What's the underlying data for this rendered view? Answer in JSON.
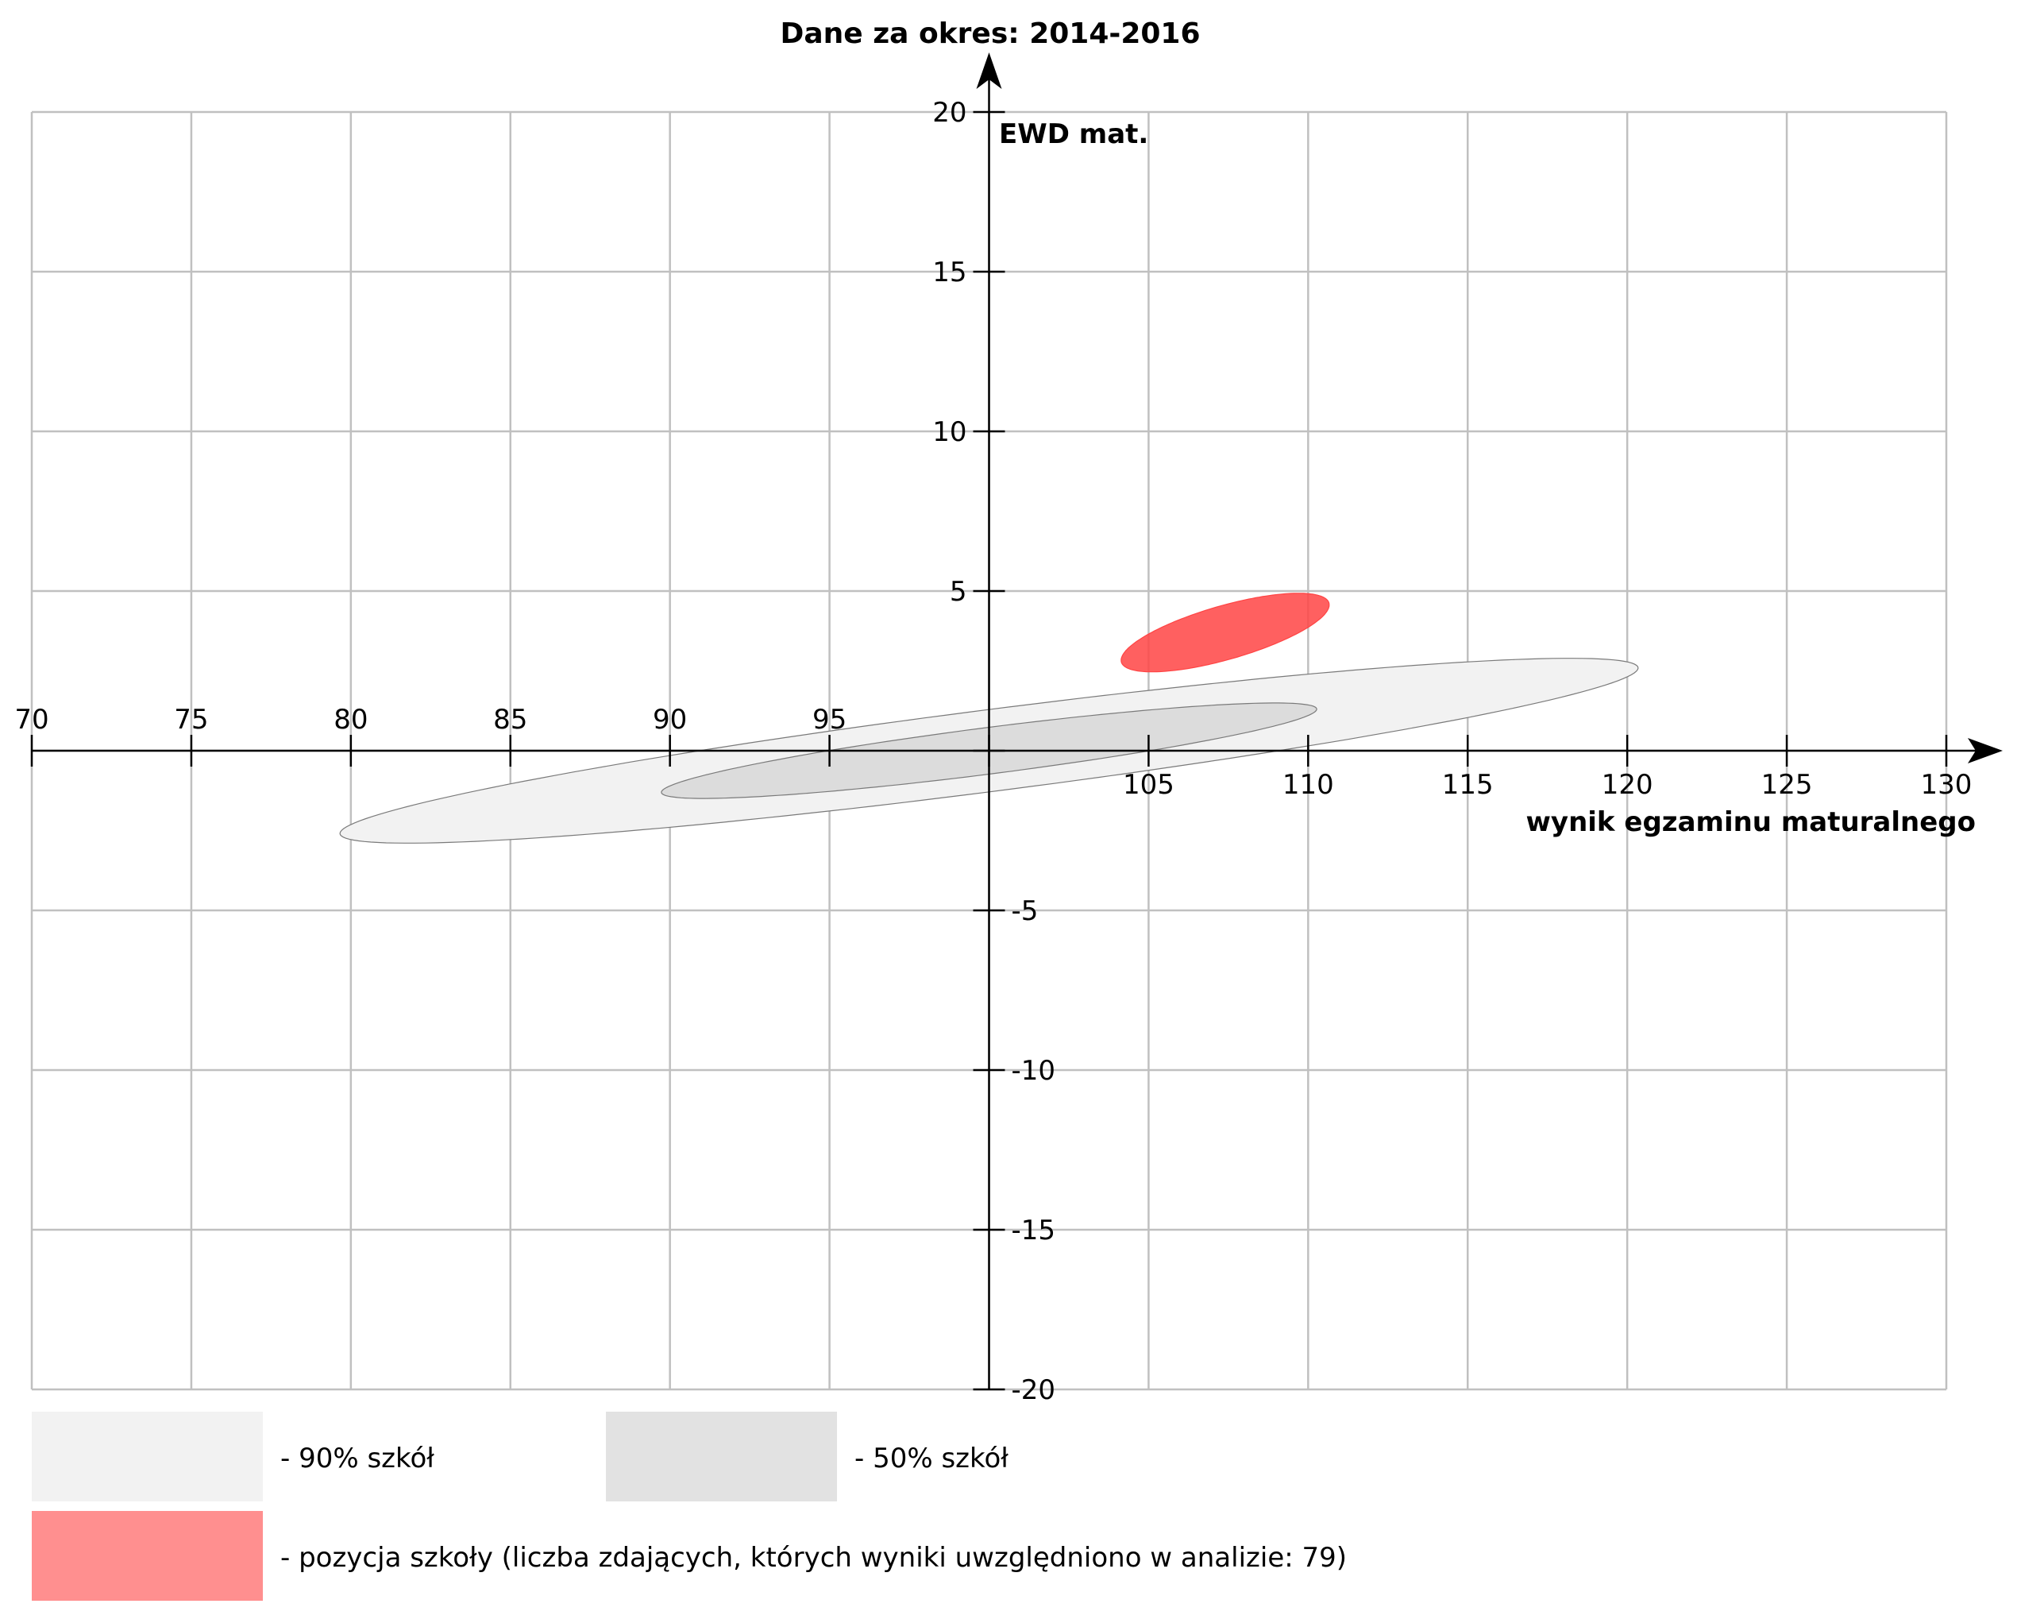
{
  "chart_data": {
    "type": "scatter",
    "title": "Dane za okres: 2014-2016",
    "xlabel": "wynik egzaminu maturalnego",
    "ylabel": "EWD mat.",
    "xlim": [
      70,
      130
    ],
    "ylim": [
      -20,
      20
    ],
    "x_ticks": [
      70,
      75,
      80,
      85,
      90,
      95,
      100,
      105,
      110,
      115,
      120,
      125,
      130
    ],
    "x_tick_labels": [
      "70",
      "75",
      "80",
      "85",
      "90",
      "95",
      "",
      "105",
      "110",
      "115",
      "120",
      "125",
      "130"
    ],
    "y_ticks": [
      20,
      15,
      10,
      5,
      0,
      -5,
      -10,
      -15,
      -20
    ],
    "y_tick_labels": [
      "20",
      "15",
      "10",
      "5",
      "",
      "-5",
      "-10",
      "-15",
      "-20"
    ],
    "grid": true,
    "regions": [
      {
        "name": "- 90% szkół",
        "color": "#f2f2f2",
        "stroke": "#7a7a7a",
        "center": [
          100,
          0
        ],
        "semi_axis_major": 21,
        "semi_axis_minor": 2.5,
        "angle_deg": 14.5
      },
      {
        "name": "- 50% szkół",
        "color": "#dcdcdc",
        "stroke": "#7a7a7a",
        "center": [
          100,
          0
        ],
        "semi_axis_major": 10.6,
        "semi_axis_minor": 1.42,
        "angle_deg": 14.5
      },
      {
        "name": "- pozycja szkoły (liczba zdających, których wyniki uwzględniono w analizie: 79)",
        "color": "#ff4444",
        "stroke": "#ff4444",
        "opacity": 0.85,
        "center": [
          107.4,
          3.7
        ],
        "semi_axis_major": 3.8,
        "semi_axis_minor": 1.5,
        "angle_deg": 34
      }
    ],
    "legend": {
      "placement": "bottom",
      "entries": [
        {
          "label": "- 90% szkół",
          "color": "#f2f2f2"
        },
        {
          "label": "- 50% szkół",
          "color": "#e2e2e2"
        },
        {
          "label": "- pozycja szkoły (liczba zdających, których wyniki uwzględniono w analizie: 79)",
          "color": "#ff8f8f"
        }
      ]
    }
  }
}
